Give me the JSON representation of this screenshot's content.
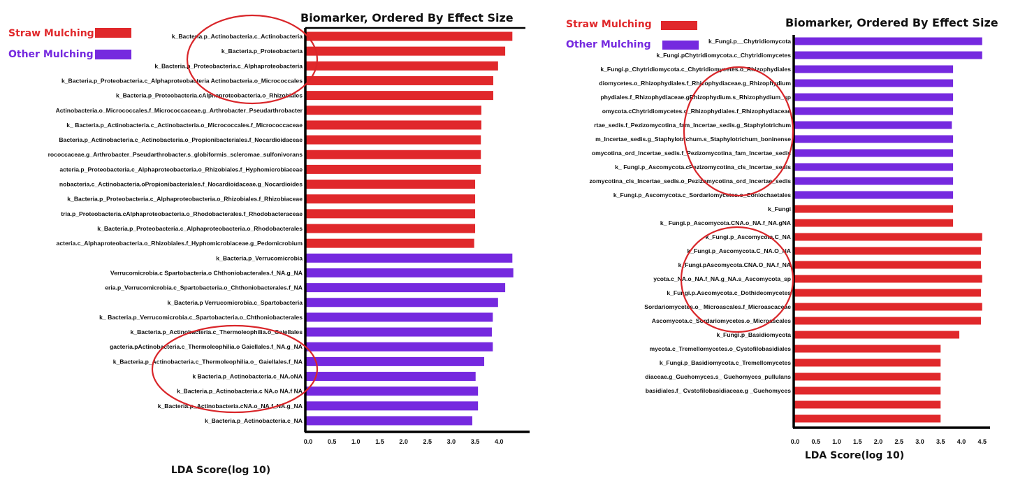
{
  "colors": {
    "straw": "#e0282b",
    "other": "#7529df",
    "annotation": "#d9262a",
    "axis": "#000000"
  },
  "chart_data": [
    {
      "type": "bar",
      "orientation": "horizontal",
      "title": "Biomarker, Ordered By Effect Size",
      "xlabel": "LDA Score(log 10)",
      "ylabel": "",
      "xlim": [
        0,
        4.5
      ],
      "xticks": [
        "0.0",
        "0.5",
        "1.0",
        "1.5",
        "2.0",
        "2.5",
        "3.0",
        "3.5",
        "4.0"
      ],
      "legend": [
        {
          "name": "Straw Mulching",
          "group": "straw"
        },
        {
          "name": "Other Mulching",
          "group": "other"
        }
      ],
      "legend_position": "top-left",
      "grid": false,
      "rows": [
        {
          "label": "k_Bacteria.p_Actinobacteria.c_Actinobacteria",
          "value": 4.28,
          "group": "straw"
        },
        {
          "label": "k_Bacteria.p_Proteobacteria",
          "value": 4.13,
          "group": "straw"
        },
        {
          "label": "k_Bacteria.p_Proteobacteria.c_Alphaproteobacteria",
          "value": 3.98,
          "group": "straw"
        },
        {
          "label": "k_Bacteria.p_Proteobacteria.c_Alphaproteobacteria Actinobacteria.o_Micrococcales",
          "value": 3.88,
          "group": "straw"
        },
        {
          "label": "k_Bacteria.p_Proteobacteria.cAlphaproteobacteria.o_Rhizobiales",
          "value": 3.88,
          "group": "straw"
        },
        {
          "label": "Actinobacteria.o_Micrococcales.f_Micrococcaceae.g_Arthrobacter_Pseudarthrobacter",
          "value": 3.63,
          "group": "straw"
        },
        {
          "label": "k_ Bacteria.p_Actinobacteria.c_Actinobacteria.o_Micrococcales.f_Micrococcaceae",
          "value": 3.63,
          "group": "straw"
        },
        {
          "label": "Bacteria.p_Actinobacteria.c_Actinobacteria.o_Propionibacteriales.f_Nocardioidaceae",
          "value": 3.62,
          "group": "straw"
        },
        {
          "label": "rococcaceae.g_Arthrobacter_Pseudarthrobacter.s_globiformis_scleromae_sulfonivorans",
          "value": 3.62,
          "group": "straw"
        },
        {
          "label": "acteria.p_Proteobacteria.c_Alphaproteobacteria.o_Rhizobiales.f_Hyphomicrobiaceae",
          "value": 3.62,
          "group": "straw"
        },
        {
          "label": "nobacteria.c_Actinobacteria.oPropionibacteriales.f_Nocardioidaceae.g_Nocardioides",
          "value": 3.5,
          "group": "straw"
        },
        {
          "label": "k_Bacteria.p_Proteobacteria.c_Alphaproteobacteria.o_Rhizobiales.f_Rhizobiaceae",
          "value": 3.5,
          "group": "straw"
        },
        {
          "label": "tria.p_Proteobacteria.cAlphaproteobacteria.o_Rhodobacterales.f_Rhodobacteraceae",
          "value": 3.5,
          "group": "straw"
        },
        {
          "label": "k_Bacteria.p_Proteobacteria.c_Alphaproteobacteria.o_Rhodobacterales",
          "value": 3.5,
          "group": "straw"
        },
        {
          "label": "acteria.c_Alphaproteobacteria.o_Rhizobiales.f_Hyphomicrobiaceae.g_Pedomicrobium",
          "value": 3.48,
          "group": "straw"
        },
        {
          "label": "k_Bacteria.p_Verrucomicrobia",
          "value": 4.28,
          "group": "other"
        },
        {
          "label": "Verrucomicrobia.c Spartobacteria.o Chthoniobacterales.f_NA.g_NA",
          "value": 4.3,
          "group": "other"
        },
        {
          "label": "eria.p_Verrucomicrobia.c_Spartobacteria.o_Chthoniobacterales.f_NA",
          "value": 4.13,
          "group": "other"
        },
        {
          "label": "k_Bacteria.p Verrucomicrobia.c_Spartobacteria",
          "value": 3.98,
          "group": "other"
        },
        {
          "label": "k_ Bacteria.p_Verrucomicrobia.c_Spartobacteria.o_Chthoniobacterales",
          "value": 3.87,
          "group": "other"
        },
        {
          "label": "k_Bacteria.p_Actinobacteria.c_Thermoleophilia.o_Gaiellales",
          "value": 3.85,
          "group": "other"
        },
        {
          "label": "gacteria.pActinobacteria.c_Thermoleophilia.o Gaiellales.f_NA.g_NA",
          "value": 3.87,
          "group": "other"
        },
        {
          "label": "k_Bacteria.p_Actinobacteria.c_Thermoleophilia.o_ Gaiellales.f_NA",
          "value": 3.69,
          "group": "other"
        },
        {
          "label": "k Bacteria.p_Actinobacteria.c_NA.oNA",
          "value": 3.51,
          "group": "other"
        },
        {
          "label": "k_Bacteria.p_Actinobacteria.c NA.o NA.f NA",
          "value": 3.56,
          "group": "other"
        },
        {
          "label": "k_Bacteria.p_Actinobacteria.cNA.o_NA.f_NA.g_NA",
          "value": 3.56,
          "group": "other"
        },
        {
          "label": "k_Bacteria.p_Actinobacteria.c_NA",
          "value": 3.44,
          "group": "other"
        }
      ]
    },
    {
      "type": "bar",
      "orientation": "horizontal",
      "title": "Biomarker, Ordered By Effect Size",
      "xlabel": "LDA Score(log 10)",
      "ylabel": "",
      "xlim": [
        0,
        4.6
      ],
      "xticks": [
        "0.0",
        "0.5",
        "1.0",
        "1.5",
        "2.0",
        "2.5",
        "3.0",
        "3.5",
        "4.0",
        "4.5"
      ],
      "legend": [
        {
          "name": "Straw Mulching",
          "group": "straw"
        },
        {
          "name": "Other Mulching",
          "group": "other"
        }
      ],
      "legend_position": "top-left",
      "grid": false,
      "rows": [
        {
          "label": "k_Fungi.p__Chytridiomycota",
          "value": 4.5,
          "group": "other"
        },
        {
          "label": "k_Fungi.pChytridiomycota.c_Chytridiomycetes",
          "value": 4.5,
          "group": "other"
        },
        {
          "label": "k_Fungi.p_Chytridiomycota.c_Chytridiomycetes.o_Rhizophydiales",
          "value": 3.8,
          "group": "other"
        },
        {
          "label": "diomycetes.o_Rhizophydiales.f_Rhizophydiaceae.g_Rhizophydium",
          "value": 3.8,
          "group": "other"
        },
        {
          "label": "phydiales.f_Rhizophydiaceae.gRhizophydium.s_Rhizophydium_sp",
          "value": 3.8,
          "group": "other"
        },
        {
          "label": "omycota.cChytridiomycetes.o_Rhizophydiales.f_Rhizophydiaceae",
          "value": 3.8,
          "group": "other"
        },
        {
          "label": "rtae_sedis.f_Pezizomycotina_fam_Incertae_sedis.g_Staphylotrichum",
          "value": 3.77,
          "group": "other"
        },
        {
          "label": "m_Incertae_sedis.g_Staphylotrichum.s_Staphylotrichum_boninense",
          "value": 3.8,
          "group": "other"
        },
        {
          "label": "omycotina_ord_Incertae_sedis.f_Pezizomycotina_fam_Incertae_sedis",
          "value": 3.8,
          "group": "other"
        },
        {
          "label": "k_ Fungi.p_Ascomycota.cPezizomycotina_cls_Incertae_sedis",
          "value": 3.8,
          "group": "other"
        },
        {
          "label": "zomycotina_cls_Incertae_sedis.o_Pezizomycotina_ord_Incertae_sedis",
          "value": 3.8,
          "group": "other"
        },
        {
          "label": "k_Fungi.p_Ascomycota.c_Sordariomycetes.o_Coniochaetales",
          "value": 3.8,
          "group": "other"
        },
        {
          "label": "k_Fungi",
          "value": 3.8,
          "group": "straw"
        },
        {
          "label": "k_ Fungi.p_Ascomycota.CNA.o_NA.f_NA.gNA",
          "value": 3.8,
          "group": "straw"
        },
        {
          "label": "k_Fungi.p_Ascomycota.C_NA",
          "value": 4.5,
          "group": "straw"
        },
        {
          "label": "k_Fungi.p_Ascomycota.C_NA.O_NA",
          "value": 4.47,
          "group": "straw"
        },
        {
          "label": "k_Fungi.pAscomycota.CNA.O_NA.f_NA",
          "value": 4.47,
          "group": "straw"
        },
        {
          "label": "ycota.c_NA.o_NA.f_NA.g_NA.s_Ascomycota_sp",
          "value": 4.5,
          "group": "straw"
        },
        {
          "label": "k_Fungi.p.Ascomycota.c_Dothideomycetes",
          "value": 4.47,
          "group": "straw"
        },
        {
          "label": "Sordariomycetes.o_ Microascales.f_Microascaceae",
          "value": 4.5,
          "group": "straw"
        },
        {
          "label": "Ascomycota.c_Sordariomycetes.o_Microascales",
          "value": 4.47,
          "group": "straw"
        },
        {
          "label": "k_Fungi.p_Basidiomycota",
          "value": 3.95,
          "group": "straw"
        },
        {
          "label": "mycota.c_Tremellomycetes.o_Cystofilobasidiales",
          "value": 3.5,
          "group": "straw"
        },
        {
          "label": "k_Fungi.p_Basidiomycota.c_Tremellomycetes",
          "value": 3.5,
          "group": "straw"
        },
        {
          "label": "diaceae.g_Guehomyces.s_ Guehomyces_pullulans",
          "value": 3.5,
          "group": "straw"
        },
        {
          "label": "basidiales.f_ Cvstofilobasidiaceae.g _Guehomyces",
          "value": 3.5,
          "group": "straw"
        },
        {
          "label": "",
          "value": 3.5,
          "group": "straw"
        },
        {
          "label": "",
          "value": 3.5,
          "group": "straw"
        }
      ]
    }
  ]
}
